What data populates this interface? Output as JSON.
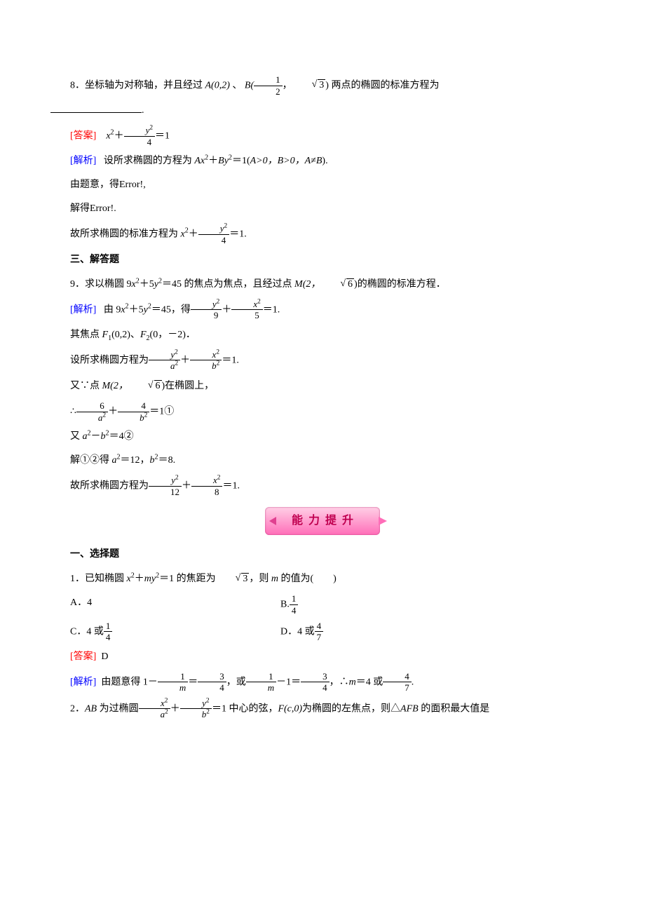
{
  "q8": {
    "prefix": "8．坐标轴为对称轴，并且经过 ",
    "pointA": "A(0,2)",
    "sep1": " 、",
    "pointB_pre": "B(",
    "pointB_frac": {
      "num": "1",
      "den": "2"
    },
    "pointB_mid": "，",
    "pointB_sqrt": "3",
    "pointB_post": ")",
    "suffix": " 两点的椭圆的标准方程为",
    "tail": "."
  },
  "q8_answer": {
    "label": "[答案]",
    "expr_pre": "x",
    "expr_sq": "2",
    "expr_plus": "＋",
    "frac": {
      "num": "y",
      "num_sup": "2",
      "den": "4"
    },
    "eq": "＝1"
  },
  "q8_analysis": {
    "label": "[解析]",
    "l1_a": "设所求椭圆的方程为 ",
    "l1_b": "Ax",
    "l1_c": "＋",
    "l1_d": "By",
    "l1_e": "＝1(",
    "l1_f": "A>0，B>0，A≠B",
    "l1_g": ").",
    "l2": "由题意，得Error!,",
    "l3": "解得Error!.",
    "l4_a": "故所求椭圆的标准方程为 ",
    "l4_b": "x",
    "l4_c": "＋",
    "l4_frac": {
      "num": "y",
      "num_sup": "2",
      "den": "4"
    },
    "l4_d": "＝1."
  },
  "sec3": "三、解答题",
  "q9": {
    "text_a": "9．求以椭圆 9",
    "x": "x",
    "plus": "＋5",
    "y": "y",
    "eq45": "＝45 的焦点为焦点，且经过点 ",
    "M": "M(2，",
    "sqrt6": "6",
    "close": ")的椭圆的标准方程．"
  },
  "q9_analysis": {
    "label": "[解析]",
    "l1_a": "由 9",
    "l1_x": "x",
    "l1_b": "＋5",
    "l1_y": "y",
    "l1_c": "＝45，得",
    "l1_f1": {
      "num": "y",
      "num_sup": "2",
      "den": "9"
    },
    "l1_plus": "＋",
    "l1_f2": {
      "num": "x",
      "num_sup": "2",
      "den": "5"
    },
    "l1_d": "＝1.",
    "l2_a": "其焦点 ",
    "l2_b": "F",
    "l2_c": "(0,2)、",
    "l2_d": "F",
    "l2_e": "(0，－2)．",
    "l3_a": "设所求椭圆方程为",
    "l3_f1": {
      "num": "y",
      "num_sup": "2",
      "den": "a",
      "den_sup": "2"
    },
    "l3_plus": "＋",
    "l3_f2": {
      "num": "x",
      "num_sup": "2",
      "den": "b",
      "den_sup": "2"
    },
    "l3_b": "＝1.",
    "l4_a": "又∵点 ",
    "l4_b": "M(2，",
    "l4_sqrt": "6",
    "l4_c": ")在椭圆上，",
    "l5_a": "∴",
    "l5_f1": {
      "num": "6",
      "den": "a",
      "den_sup": "2"
    },
    "l5_plus": "＋",
    "l5_f2": {
      "num": "4",
      "den": "b",
      "den_sup": "2"
    },
    "l5_b": "＝1①",
    "l6_a": "又 ",
    "l6_b": "a",
    "l6_c": "－",
    "l6_d": "b",
    "l6_e": "＝4②",
    "l7_a": "解①②得 ",
    "l7_b": "a",
    "l7_c": "＝12，",
    "l7_d": "b",
    "l7_e": "＝8.",
    "l8_a": "故所求椭圆方程为",
    "l8_f1": {
      "num": "y",
      "num_sup": "2",
      "den": "12"
    },
    "l8_plus": "＋",
    "l8_f2": {
      "num": "x",
      "num_sup": "2",
      "den": "8"
    },
    "l8_b": "＝1."
  },
  "banner": "能力提升",
  "sec1b": "一、选择题",
  "p1": {
    "text_a": "1．已知椭圆 ",
    "x": "x",
    "plus": "＋",
    "m": "my",
    "eq": "＝1 的焦距为",
    "sqrt3": "3",
    "tail": "，则 ",
    "m2": "m",
    "tail2": " 的值为(　　)",
    "optA_pre": "A．4",
    "optB_pre": "B.",
    "optB_frac": {
      "num": "1",
      "den": "4"
    },
    "optC_pre": "C．4 或",
    "optC_frac": {
      "num": "1",
      "den": "4"
    },
    "optD_pre": "D．4 或",
    "optD_frac": {
      "num": "4",
      "den": "7"
    }
  },
  "p1_answer": {
    "label": "[答案]",
    "val": "D"
  },
  "p1_analysis": {
    "label": "[解析]",
    "a": "由题意得 1－",
    "f1": {
      "num": "1",
      "den": "m"
    },
    "b": "＝",
    "f2": {
      "num": "3",
      "den": "4"
    },
    "c": "，或",
    "f3": {
      "num": "1",
      "den": "m"
    },
    "d": "－1＝",
    "f4": {
      "num": "3",
      "den": "4"
    },
    "e": "，∴",
    "m": "m",
    "f": "＝4 或",
    "f5": {
      "num": "4",
      "den": "7"
    },
    "g": "."
  },
  "p2": {
    "text_a": "2．",
    "AB": "AB",
    "text_b": " 为过椭圆",
    "f1": {
      "num": "x",
      "num_sup": "2",
      "den": "a",
      "den_sup": "2"
    },
    "plus": "＋",
    "f2": {
      "num": "y",
      "num_sup": "2",
      "den": "b",
      "den_sup": "2"
    },
    "text_c": "＝1 中心的弦，",
    "F": "F(c,0)",
    "text_d": "为椭圆的左焦点，则△",
    "AFB": "AFB",
    "text_e": " 的面积最大值是"
  }
}
